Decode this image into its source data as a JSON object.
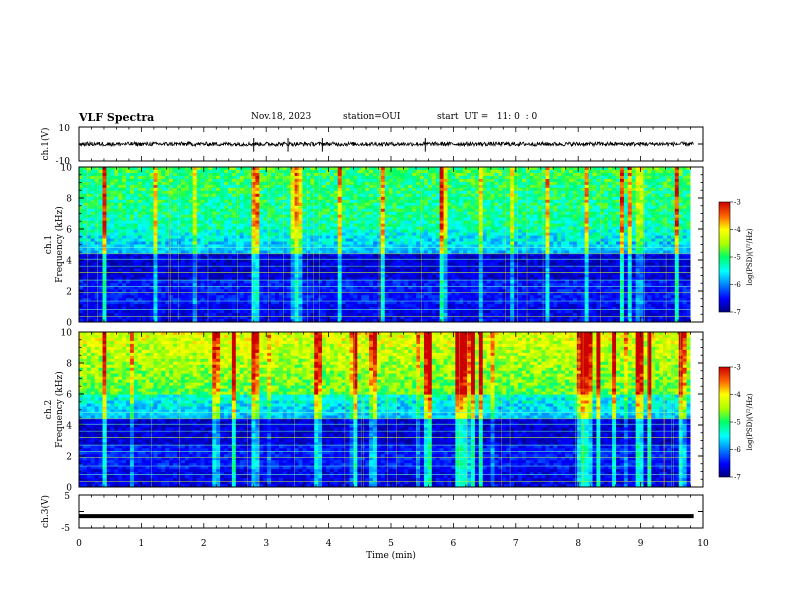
{
  "header": {
    "title": "VLF Spectra",
    "date": "Nov.18, 2023",
    "station": "station=OUI",
    "start": "start  UT =   11: 0  : 0"
  },
  "chart_data": [
    {
      "type": "line",
      "name": "ch1_waveform",
      "ylabel": "ch.1(V)",
      "ylim": [
        -10,
        10
      ],
      "yticks": [
        "10",
        "-10"
      ],
      "xlim": [
        0,
        10
      ],
      "baseline": 0,
      "noise_amplitude": 1.2
    },
    {
      "type": "heatmap",
      "name": "ch1_spectrogram",
      "ylabel": "ch.1",
      "ylabel2": "Frequency (kHz)",
      "xlim": [
        0,
        10
      ],
      "ylim": [
        0,
        10
      ],
      "yticks": [
        "0",
        "2",
        "4",
        "6",
        "8",
        "10"
      ],
      "data_end_min": 9.8,
      "colorbar": {
        "label": "log(PSD)(V²/Hz)",
        "range": [
          -7,
          -3
        ],
        "ticks": [
          "-3",
          "-4",
          "-5",
          "-6",
          "-7"
        ]
      }
    },
    {
      "type": "heatmap",
      "name": "ch2_spectrogram",
      "ylabel": "ch.2",
      "ylabel2": "Frequency (kHz)",
      "xlim": [
        0,
        10
      ],
      "ylim": [
        0,
        10
      ],
      "yticks": [
        "0",
        "2",
        "4",
        "6",
        "8",
        "10"
      ],
      "data_end_min": 9.8,
      "colorbar": {
        "label": "log(PSD)(V²/Hz)",
        "range": [
          -7,
          -3
        ],
        "ticks": [
          "-3",
          "-4",
          "-5",
          "-6",
          "-7"
        ]
      }
    },
    {
      "type": "line",
      "name": "ch3_waveform",
      "ylabel": "ch.3(V)",
      "ylim": [
        -5,
        5
      ],
      "yticks": [
        "5",
        "-5"
      ],
      "xlim": [
        0,
        10
      ],
      "baseline": -1.4
    }
  ],
  "xaxis": {
    "label": "Time  (min)",
    "ticks": [
      "0",
      "1",
      "2",
      "3",
      "4",
      "5",
      "6",
      "7",
      "8",
      "9",
      "10"
    ]
  },
  "colors": {
    "axis": "#000000",
    "background": "#ffffff"
  }
}
